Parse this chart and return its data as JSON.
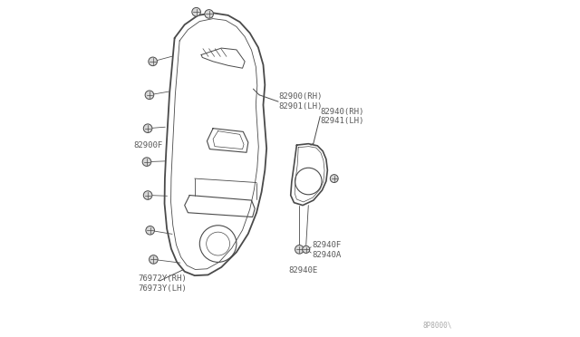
{
  "bg_color": "#ffffff",
  "line_color": "#4a4a4a",
  "text_color": "#5a5a5a",
  "font_size": 6.5,
  "watermark": "8P8000\\",
  "labels": {
    "82900F": "82900F",
    "82940_RH": "82940(RH)",
    "82941_LH": "82941(LH)",
    "82900_RH": "82900(RH)",
    "82901_LH": "82901(LH)",
    "82940F": "82940F",
    "82940A": "82940A",
    "82940E": "82940E",
    "76972Y_RH": "76972Y(RH)",
    "76973Y_LH": "76973Y(LH)"
  }
}
